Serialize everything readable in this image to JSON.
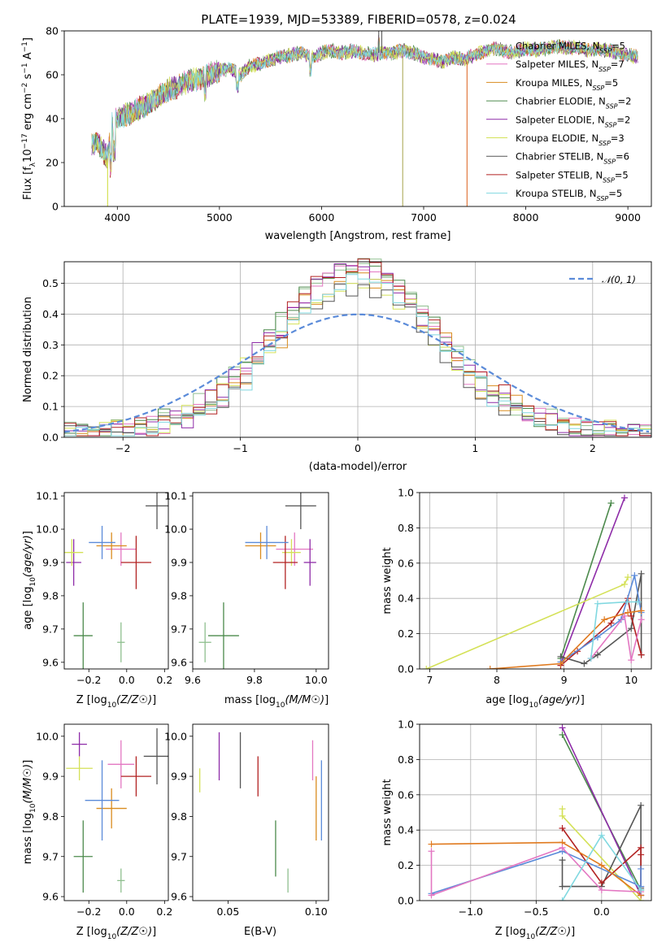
{
  "figure": {
    "title": "PLATE=1939, MJD=53389, FIBERID=0578, z=0.024"
  },
  "colors": {
    "Chabrier MILES": "#8fbf8f",
    "Salpeter MILES": "#e377c2",
    "Kroupa MILES": "#d98c1f",
    "Chabrier ELODIE": "#4c8a4c",
    "Salpeter ELODIE": "#8e2ca8",
    "Kroupa ELODIE": "#d4e157",
    "Chabrier STELIB": "#555555",
    "Salpeter STELIB": "#b22222",
    "Kroupa STELIB": "#80d8e0",
    "Blue": "#5b8bd9",
    "Orange": "#e07a1f"
  },
  "chart_data": [
    {
      "id": "spectrum",
      "type": "line",
      "title": "PLATE=1939, MJD=53389, FIBERID=0578, z=0.024",
      "xlabel": "wavelength [Angstrom, rest frame]",
      "ylabel": "Flux [f_λ 10^-17 erg cm^-2 s^-1 A^-1]",
      "xlim": [
        3480,
        9230
      ],
      "ylim": [
        0,
        80
      ],
      "xticks": [
        4000,
        5000,
        6000,
        7000,
        8000,
        9000
      ],
      "yticks": [
        0,
        20,
        40,
        60,
        80
      ],
      "wavelength_range": [
        3750,
        9100
      ],
      "envelope": [
        [
          3750,
          28
        ],
        [
          3800,
          30
        ],
        [
          3850,
          26
        ],
        [
          3900,
          22
        ],
        [
          3950,
          38
        ],
        [
          4000,
          40
        ],
        [
          4100,
          42
        ],
        [
          4200,
          44
        ],
        [
          4300,
          47
        ],
        [
          4400,
          50
        ],
        [
          4500,
          53
        ],
        [
          4600,
          55
        ],
        [
          4700,
          57
        ],
        [
          4800,
          58
        ],
        [
          4900,
          60
        ],
        [
          5000,
          62
        ],
        [
          5100,
          63
        ],
        [
          5200,
          60
        ],
        [
          5300,
          64
        ],
        [
          5400,
          65
        ],
        [
          5500,
          67
        ],
        [
          5600,
          68
        ],
        [
          5700,
          69
        ],
        [
          5800,
          70
        ],
        [
          5900,
          68
        ],
        [
          6000,
          70
        ],
        [
          6100,
          71
        ],
        [
          6200,
          70
        ],
        [
          6300,
          71
        ],
        [
          6400,
          70
        ],
        [
          6500,
          69
        ],
        [
          6600,
          70
        ],
        [
          6700,
          70
        ],
        [
          6800,
          71
        ],
        [
          6900,
          70
        ],
        [
          7000,
          68
        ],
        [
          7100,
          67
        ],
        [
          7200,
          66
        ],
        [
          7300,
          68
        ],
        [
          7400,
          67
        ],
        [
          7500,
          69
        ],
        [
          7600,
          71
        ],
        [
          7700,
          72
        ],
        [
          7800,
          71
        ],
        [
          7900,
          70
        ],
        [
          8000,
          72
        ],
        [
          8100,
          71
        ],
        [
          8200,
          72
        ],
        [
          8300,
          73
        ],
        [
          8400,
          72
        ],
        [
          8500,
          73
        ],
        [
          8600,
          71
        ],
        [
          8700,
          72
        ],
        [
          8800,
          71
        ],
        [
          8900,
          70
        ],
        [
          9000,
          69
        ],
        [
          9100,
          68
        ]
      ],
      "legend": [
        {
          "name": "Chabrier MILES, N_SSP=5",
          "label": "Chabrier MILES, N",
          "sub": "SSP",
          "tail": "=5"
        },
        {
          "name": "Salpeter MILES, N_SSP=7",
          "label": "Salpeter MILES, N",
          "sub": "SSP",
          "tail": "=7"
        },
        {
          "name": "Kroupa MILES, N_SSP=5",
          "label": "Kroupa MILES, N",
          "sub": "SSP",
          "tail": "=5"
        },
        {
          "name": "Chabrier ELODIE, N_SSP=2",
          "label": "Chabrier ELODIE, N",
          "sub": "SSP",
          "tail": "=2"
        },
        {
          "name": "Salpeter ELODIE, N_SSP=2",
          "label": "Salpeter ELODIE, N",
          "sub": "SSP",
          "tail": "=2"
        },
        {
          "name": "Kroupa ELODIE, N_SSP=3",
          "label": "Kroupa ELODIE, N",
          "sub": "SSP",
          "tail": "=3"
        },
        {
          "name": "Chabrier STELIB, N_SSP=6",
          "label": "Chabrier STELIB, N",
          "sub": "SSP",
          "tail": "=6"
        },
        {
          "name": "Salpeter STELIB, N_SSP=5",
          "label": "Salpeter STELIB, N",
          "sub": "SSP",
          "tail": "=5"
        },
        {
          "name": "Kroupa STELIB, N_SSP=5",
          "label": "Kroupa STELIB, N",
          "sub": "SSP",
          "tail": "=5"
        }
      ],
      "legend_placement": "upper right"
    },
    {
      "id": "residuals",
      "type": "histogram",
      "xlabel": "(data-model)/error",
      "ylabel": "Normed distribution",
      "xlim": [
        -2.5,
        2.5
      ],
      "ylim": [
        0,
        0.57
      ],
      "xticks": [
        -2,
        -1,
        0,
        1,
        2
      ],
      "yticks": [
        0.0,
        0.1,
        0.2,
        0.3,
        0.4,
        0.5
      ],
      "grid": true,
      "bin_edges_range": [
        -2.5,
        2.5
      ],
      "bin_width": 0.1,
      "reference_curve": {
        "name": "N(0,1)",
        "mean": 0,
        "sigma": 1,
        "style": "dashed",
        "color": "#5b8bd9"
      },
      "legend_placement": "upper right",
      "series_peak_heights": [
        0.55,
        0.52,
        0.5,
        0.54,
        0.53,
        0.48,
        0.47,
        0.54,
        0.49
      ]
    },
    {
      "id": "age_vs_Z",
      "type": "errorbar",
      "xlabel": "Z [log10(Z/Z☉)]",
      "ylabel": "age [log10(age/yr)]",
      "xlim": [
        -0.33,
        0.22
      ],
      "ylim": [
        9.58,
        10.11
      ],
      "xticks": [
        -0.2,
        0.0,
        0.2
      ],
      "yticks": [
        9.6,
        9.7,
        9.8,
        9.9,
        10.0,
        10.1
      ],
      "points": [
        {
          "series": "Chabrier MILES",
          "x": -0.03,
          "y": 9.66,
          "xerr": 0.02,
          "yerr": 0.06
        },
        {
          "series": "Salpeter MILES",
          "x": -0.03,
          "y": 9.94,
          "xerr": 0.08,
          "yerr": 0.05
        },
        {
          "series": "Kroupa MILES",
          "x": -0.08,
          "y": 9.95,
          "xerr": 0.08,
          "yerr": 0.04
        },
        {
          "series": "Chabrier ELODIE",
          "x": -0.23,
          "y": 9.68,
          "xerr": 0.05,
          "yerr": 0.1
        },
        {
          "series": "Salpeter ELODIE",
          "x": -0.28,
          "y": 9.9,
          "xerr": 0.04,
          "yerr": 0.07
        },
        {
          "series": "Kroupa ELODIE",
          "x": -0.29,
          "y": 9.93,
          "xerr": 0.06,
          "yerr": 0.04
        },
        {
          "series": "Chabrier STELIB",
          "x": 0.16,
          "y": 10.07,
          "xerr": 0.06,
          "yerr": 0.07
        },
        {
          "series": "Salpeter STELIB",
          "x": 0.05,
          "y": 9.9,
          "xerr": 0.08,
          "yerr": 0.08
        },
        {
          "series": "Blue",
          "x": -0.13,
          "y": 9.96,
          "xerr": 0.07,
          "yerr": 0.05
        }
      ]
    },
    {
      "id": "age_vs_mass",
      "type": "errorbar",
      "xlabel": "mass [log10(M/M☉)]",
      "ylabel": "",
      "xlim": [
        9.6,
        10.04
      ],
      "ylim": [
        9.58,
        10.11
      ],
      "xticks": [
        9.6,
        9.8,
        10.0
      ],
      "yticks": [
        9.6,
        9.7,
        9.8,
        9.9,
        10.0,
        10.1
      ],
      "points": [
        {
          "series": "Chabrier MILES",
          "x": 9.64,
          "y": 9.66,
          "xerr": 0.02,
          "yerr": 0.06
        },
        {
          "series": "Salpeter MILES",
          "x": 9.93,
          "y": 9.94,
          "xerr": 0.06,
          "yerr": 0.05
        },
        {
          "series": "Kroupa MILES",
          "x": 9.82,
          "y": 9.95,
          "xerr": 0.05,
          "yerr": 0.04
        },
        {
          "series": "Chabrier ELODIE",
          "x": 9.7,
          "y": 9.68,
          "xerr": 0.05,
          "yerr": 0.1
        },
        {
          "series": "Salpeter ELODIE",
          "x": 9.98,
          "y": 9.9,
          "xerr": 0.02,
          "yerr": 0.07
        },
        {
          "series": "Kroupa ELODIE",
          "x": 9.92,
          "y": 9.93,
          "xerr": 0.03,
          "yerr": 0.04
        },
        {
          "series": "Chabrier STELIB",
          "x": 9.95,
          "y": 10.07,
          "xerr": 0.05,
          "yerr": 0.07
        },
        {
          "series": "Salpeter STELIB",
          "x": 9.9,
          "y": 9.9,
          "xerr": 0.04,
          "yerr": 0.08
        },
        {
          "series": "Blue",
          "x": 9.84,
          "y": 9.96,
          "xerr": 0.07,
          "yerr": 0.05
        }
      ]
    },
    {
      "id": "weight_vs_age",
      "type": "line",
      "xlabel": "age [log10(age/yr)]",
      "ylabel": "mass weight",
      "xlim": [
        6.85,
        10.3
      ],
      "ylim": [
        0,
        1.0
      ],
      "xticks": [
        7,
        8,
        9,
        10
      ],
      "yticks": [
        0.0,
        0.2,
        0.4,
        0.6,
        0.8,
        1.0
      ],
      "grid": true,
      "series": [
        {
          "name": "Chabrier ELODIE",
          "x": [
            8.95,
            9.7
          ],
          "y": [
            0.06,
            0.94
          ]
        },
        {
          "name": "Salpeter ELODIE",
          "x": [
            8.95,
            9.9
          ],
          "y": [
            0.03,
            0.97
          ]
        },
        {
          "name": "Kroupa ELODIE",
          "x": [
            6.95,
            9.9,
            9.95
          ],
          "y": [
            0.0,
            0.48,
            0.52
          ]
        },
        {
          "name": "Chabrier STELIB",
          "x": [
            8.95,
            9.3,
            9.5,
            10.0,
            10.15,
            10.15
          ],
          "y": [
            0.07,
            0.03,
            0.08,
            0.23,
            0.54,
            0.08
          ]
        },
        {
          "name": "Salpeter STELIB",
          "x": [
            8.95,
            9.2,
            9.7,
            9.95,
            10.0,
            10.15
          ],
          "y": [
            0.02,
            0.1,
            0.26,
            0.4,
            0.3,
            0.08
          ]
        },
        {
          "name": "Blue",
          "x": [
            8.95,
            9.5,
            9.85,
            10.05,
            10.15
          ],
          "y": [
            0.04,
            0.18,
            0.28,
            0.53,
            0.32
          ]
        },
        {
          "name": "Orange",
          "x": [
            7.9,
            8.95,
            9.6,
            9.95,
            10.15
          ],
          "y": [
            0.0,
            0.03,
            0.28,
            0.32,
            0.33
          ]
        },
        {
          "name": "Salpeter MILES",
          "x": [
            9.4,
            9.9,
            10.0,
            10.15
          ],
          "y": [
            0.06,
            0.3,
            0.05,
            0.28
          ]
        },
        {
          "name": "Kroupa STELIB",
          "x": [
            9.4,
            9.5,
            9.95,
            10.1
          ],
          "y": [
            0.06,
            0.37,
            0.38,
            0.38
          ]
        }
      ]
    },
    {
      "id": "mass_vs_Z",
      "type": "errorbar",
      "xlabel": "Z [log10(Z/Z☉)]",
      "ylabel": "mass [log10(M/M☉)]",
      "xlim": [
        -0.33,
        0.22
      ],
      "ylim": [
        9.59,
        10.03
      ],
      "xticks": [
        -0.2,
        0.0,
        0.2
      ],
      "yticks": [
        9.6,
        9.7,
        9.8,
        9.9,
        10.0
      ],
      "points": [
        {
          "series": "Chabrier MILES",
          "x": -0.03,
          "y": 9.64,
          "xerr": 0.02,
          "yerr": 0.03
        },
        {
          "series": "Salpeter MILES",
          "x": -0.03,
          "y": 9.93,
          "xerr": 0.07,
          "yerr": 0.06
        },
        {
          "series": "Kroupa MILES",
          "x": -0.08,
          "y": 9.82,
          "xerr": 0.08,
          "yerr": 0.05
        },
        {
          "series": "Chabrier ELODIE",
          "x": -0.23,
          "y": 9.7,
          "xerr": 0.05,
          "yerr": 0.09
        },
        {
          "series": "Salpeter ELODIE",
          "x": -0.25,
          "y": 9.98,
          "xerr": 0.04,
          "yerr": 0.03
        },
        {
          "series": "Kroupa ELODIE",
          "x": -0.25,
          "y": 9.92,
          "xerr": 0.07,
          "yerr": 0.03
        },
        {
          "series": "Chabrier STELIB",
          "x": 0.16,
          "y": 9.95,
          "xerr": 0.07,
          "yerr": 0.07
        },
        {
          "series": "Salpeter STELIB",
          "x": 0.05,
          "y": 9.9,
          "xerr": 0.08,
          "yerr": 0.05
        },
        {
          "series": "Blue",
          "x": -0.13,
          "y": 9.84,
          "xerr": 0.09,
          "yerr": 0.1
        }
      ]
    },
    {
      "id": "mass_vs_ebv",
      "type": "errorbar",
      "xlabel": "E(B-V)",
      "ylabel": "",
      "xlim": [
        0.03,
        0.107
      ],
      "ylim": [
        9.59,
        10.03
      ],
      "xticks": [
        0.05,
        0.1
      ],
      "yticks": [
        9.6,
        9.7,
        9.8,
        9.9,
        10.0
      ],
      "points": [
        {
          "series": "Kroupa ELODIE",
          "x": 0.034,
          "y": 9.89,
          "xerr": 0,
          "yerr": 0.03
        },
        {
          "series": "Salpeter ELODIE",
          "x": 0.045,
          "y": 9.95,
          "xerr": 0,
          "yerr": 0.06
        },
        {
          "series": "Chabrier STELIB",
          "x": 0.057,
          "y": 9.94,
          "xerr": 0,
          "yerr": 0.07
        },
        {
          "series": "Salpeter STELIB",
          "x": 0.067,
          "y": 9.9,
          "xerr": 0,
          "yerr": 0.05
        },
        {
          "series": "Chabrier ELODIE",
          "x": 0.077,
          "y": 9.72,
          "xerr": 0,
          "yerr": 0.07
        },
        {
          "series": "Chabrier MILES",
          "x": 0.084,
          "y": 9.64,
          "xerr": 0,
          "yerr": 0.03
        },
        {
          "series": "Salpeter MILES",
          "x": 0.098,
          "y": 9.94,
          "xerr": 0,
          "yerr": 0.05
        },
        {
          "series": "Kroupa MILES",
          "x": 0.1,
          "y": 9.82,
          "xerr": 0,
          "yerr": 0.08
        },
        {
          "series": "Blue",
          "x": 0.103,
          "y": 9.84,
          "xerr": 0,
          "yerr": 0.1
        }
      ]
    },
    {
      "id": "weight_vs_Z",
      "type": "line",
      "xlabel": "Z [log10(Z/Z☉)]",
      "ylabel": "mass weight",
      "xlim": [
        -1.39,
        0.38
      ],
      "ylim": [
        0,
        1.0
      ],
      "xticks": [
        -1.0,
        -0.5,
        0.0
      ],
      "yticks": [
        0.0,
        0.2,
        0.4,
        0.6,
        0.8,
        1.0
      ],
      "grid": true,
      "series": [
        {
          "name": "Chabrier ELODIE",
          "x": [
            -0.3,
            0.3
          ],
          "y": [
            0.94,
            0.06
          ]
        },
        {
          "name": "Salpeter ELODIE",
          "x": [
            -0.3,
            0.3
          ],
          "y": [
            0.98,
            0.03
          ]
        },
        {
          "name": "Kroupa ELODIE",
          "x": [
            -0.3,
            -0.3,
            0.3
          ],
          "y": [
            0.52,
            0.48,
            0.0
          ]
        },
        {
          "name": "Chabrier STELIB",
          "x": [
            -0.3,
            -0.3,
            0.0,
            0.3,
            0.3,
            0.3
          ],
          "y": [
            0.23,
            0.08,
            0.08,
            0.54,
            0.07,
            0.03
          ]
        },
        {
          "name": "Salpeter STELIB",
          "x": [
            -0.3,
            0.0,
            0.3,
            0.3,
            0.3
          ],
          "y": [
            0.41,
            0.1,
            0.3,
            0.26,
            0.08
          ]
        },
        {
          "name": "Blue",
          "x": [
            -1.3,
            -0.3,
            0.3,
            0.3
          ],
          "y": [
            0.04,
            0.28,
            0.08,
            0.18
          ]
        },
        {
          "name": "Orange",
          "x": [
            -1.3,
            -0.3,
            0.0,
            0.3
          ],
          "y": [
            0.32,
            0.33,
            0.2,
            0.03
          ]
        },
        {
          "name": "Salpeter MILES",
          "x": [
            -1.3,
            -1.3,
            -0.3,
            0.0,
            0.3
          ],
          "y": [
            0.28,
            0.03,
            0.3,
            0.06,
            0.05
          ]
        },
        {
          "name": "Kroupa STELIB",
          "x": [
            -0.3,
            0.0,
            0.3
          ],
          "y": [
            0.0,
            0.37,
            0.06
          ]
        }
      ]
    }
  ]
}
